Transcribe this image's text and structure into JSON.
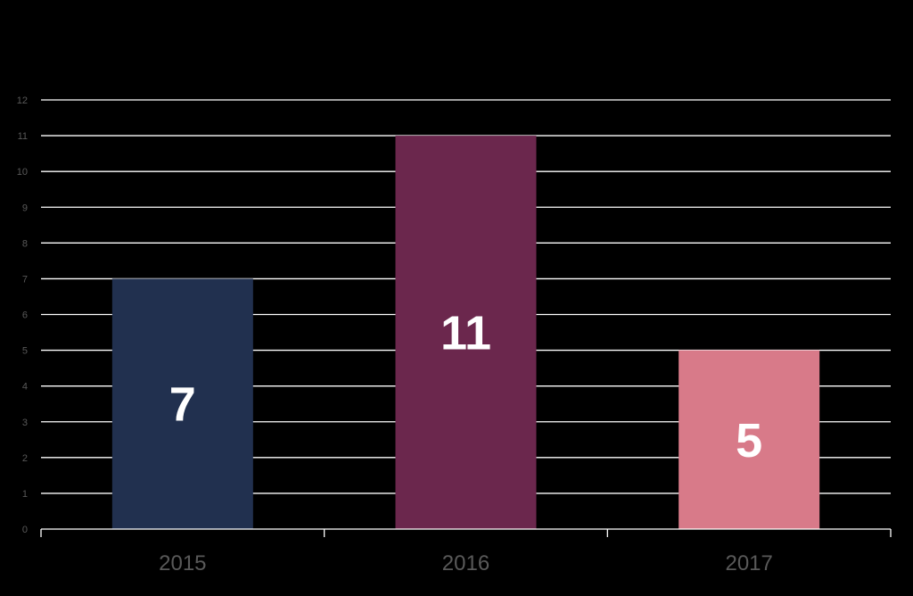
{
  "chart_data": {
    "type": "bar",
    "title": "",
    "xlabel": "",
    "ylabel": "",
    "categories": [
      "2015",
      "2016",
      "2017"
    ],
    "values": [
      7,
      11,
      5
    ],
    "data_labels": [
      "7",
      "11",
      "5"
    ],
    "ylim": [
      0,
      12
    ],
    "yticks": [
      "0",
      "1",
      "2",
      "3",
      "4",
      "5",
      "6",
      "7",
      "8",
      "9",
      "10",
      "11",
      "12"
    ],
    "grid": true,
    "legend": "none",
    "bar_colors": [
      "#21304f",
      "#6b274d",
      "#d87a89"
    ],
    "background_color": "#000000",
    "gridline_color": "#ffffff",
    "tick_label_color": "#595959",
    "data_label_color": "#ffffff"
  }
}
